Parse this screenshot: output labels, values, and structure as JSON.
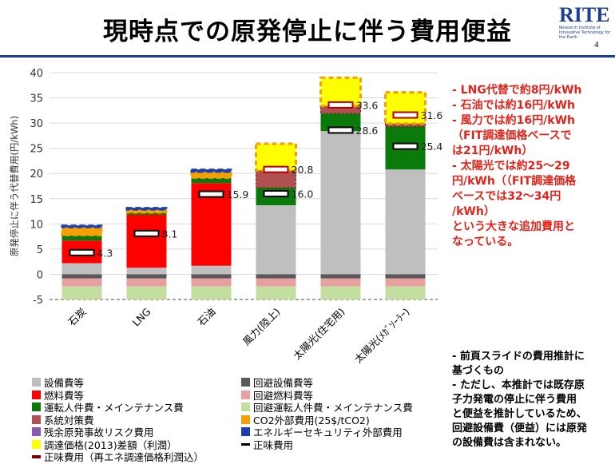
{
  "header": {
    "title": "現時点での原発停止に伴う費用便益",
    "logo_text": "RITE",
    "logo_sub": "Research Institute of Innovative Technology for the Earth",
    "page_number": "4"
  },
  "notes": {
    "red": [
      "- LNG代替で約8円/kWh",
      "- 石油では約16円/kWh",
      "- 風力では約16円/kWh",
      "（FIT調達価格ベースで",
      "は21円/kWh）",
      "- 太陽光では約25～29",
      "円/kWh（（FIT調達価格",
      "ベースでは32～34円",
      "/kWh）",
      "という大きな追加費用と",
      "なっている。"
    ],
    "black": [
      "- 前頁スライドの費用推計に",
      "基づくもの",
      "- ただし、本推計では既存原",
      "子力発電の停止に伴う費用",
      "と便益を推計しているため、",
      "回避設備費（便益）には原発",
      "の設備費は含まれない。"
    ]
  },
  "legend": [
    {
      "label": "設備費等",
      "color": "#bfbfbf"
    },
    {
      "label": "回避設備費等",
      "color": "#595959"
    },
    {
      "label": "燃料費等",
      "color": "#ff0000"
    },
    {
      "label": "回避燃料費等",
      "color": "#e6a0a0"
    },
    {
      "label": "運転人件費・メインテナンス費",
      "color": "#0a7a0a"
    },
    {
      "label": "回避運転人件費・メインテナンス費",
      "color": "#c4dea0"
    },
    {
      "label": "系統対策費",
      "color": "#b05050"
    },
    {
      "label": "CO2外部費用(25$/tCO2)",
      "color": "#f5a000"
    },
    {
      "label": "残余原発事故リスク費用",
      "color": "#8a5ab0"
    },
    {
      "label": "エネルギーセキュリティ外部費用",
      "color": "#1c3fb0"
    },
    {
      "label": "調達価格(2013)差額（利潤）",
      "color": "#ffff00"
    },
    {
      "label": "正味費用",
      "color": "#000000"
    },
    {
      "label": "正味費用（再エネ調達価格利潤込）",
      "color": "#7a0000"
    }
  ],
  "chart_data": {
    "type": "bar",
    "stacked": true,
    "ylabel": "原発停止に伴う代替費用(円/kWh)",
    "ylim": [
      -5,
      40
    ],
    "yticks": [
      -5,
      0,
      5,
      10,
      15,
      20,
      25,
      30,
      35,
      40
    ],
    "categories": [
      "石炭",
      "LNG",
      "石油",
      "風力(陸上)",
      "太陽光(住宅用)",
      "太陽光(ﾒｶﾞｿｰﾗｰ)"
    ],
    "series": [
      {
        "name": "設備費等",
        "color": "#bfbfbf",
        "values": [
          2.2,
          1.3,
          1.7,
          13.7,
          28.4,
          20.8
        ]
      },
      {
        "name": "燃料費等",
        "color": "#ff0000",
        "values": [
          4.5,
          10.5,
          16.4,
          0,
          0,
          0
        ]
      },
      {
        "name": "運転人件費・メインテナンス費",
        "color": "#0a7a0a",
        "values": [
          1.0,
          0.4,
          1.0,
          3.5,
          3.5,
          8.5
        ]
      },
      {
        "name": "系統対策費",
        "color": "#b05050",
        "values": [
          0,
          0,
          0,
          3.4,
          1.5,
          0.6
        ]
      },
      {
        "name": "CO2外部費用(25$/tCO2)",
        "color": "#f5a000",
        "values": [
          1.6,
          0.6,
          1.2,
          0,
          0,
          0
        ]
      },
      {
        "name": "残余原発事故リスク費用",
        "color": "#8a5ab0",
        "values": [
          0,
          0,
          0,
          0,
          0,
          0
        ]
      },
      {
        "name": "エネルギーセキュリティ外部費用",
        "color": "#1c3fb0",
        "values": [
          0.4,
          0.4,
          0.5,
          0,
          0,
          0
        ]
      },
      {
        "name": "調達価格(2013)差額（利潤）",
        "color": "#ffff00",
        "values": [
          0,
          0,
          0,
          5.3,
          5.6,
          6.2
        ]
      },
      {
        "name": "回避設備費等",
        "color": "#595959",
        "values": [
          -0.8,
          -0.8,
          -0.8,
          -0.8,
          -0.8,
          -0.8
        ]
      },
      {
        "name": "回避燃料費等",
        "color": "#e6a0a0",
        "values": [
          -1.6,
          -1.6,
          -1.6,
          -1.6,
          -1.6,
          -1.6
        ]
      },
      {
        "name": "回避運転人件費・メインテナンス費",
        "color": "#c4dea0",
        "values": [
          -2.6,
          -2.6,
          -2.6,
          -2.6,
          -2.6,
          -2.6
        ]
      }
    ],
    "net_cost": {
      "name": "正味費用",
      "values": [
        4.3,
        8.1,
        15.9,
        16.0,
        28.6,
        25.4
      ]
    },
    "net_cost_with_profit": {
      "name": "正味費用（再エネ調達価格利潤込）",
      "values": [
        null,
        null,
        null,
        20.8,
        33.6,
        31.6
      ]
    },
    "net_labels": [
      "4.3",
      "8.1",
      "15.9",
      "16.0",
      "28.6",
      "25.4"
    ],
    "net_profit_labels": [
      "",
      "",
      "",
      "20.8",
      "33.6",
      "31.6"
    ]
  }
}
